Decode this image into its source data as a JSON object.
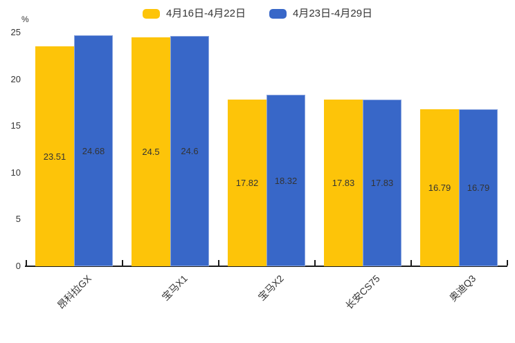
{
  "chart_data": {
    "type": "bar",
    "title": "",
    "unit_label": "%",
    "categories": [
      "昂科拉GX",
      "宝马X1",
      "宝马X2",
      "长安CS75",
      "奥迪Q3"
    ],
    "series": [
      {
        "name": "4月16日-4月22日",
        "color": "#FDC409",
        "values": [
          23.51,
          24.5,
          17.82,
          17.83,
          16.79
        ]
      },
      {
        "name": "4月23日-4月29日",
        "color": "#3867C8",
        "values": [
          24.68,
          24.6,
          18.32,
          17.83,
          16.79
        ]
      }
    ],
    "value_labels": [
      [
        "23.51",
        "24.5",
        "17.82",
        "17.83",
        "16.79"
      ],
      [
        "24.68",
        "24.6",
        "18.32",
        "17.83",
        "16.79"
      ]
    ],
    "ylim": [
      0,
      25
    ],
    "yticks": [
      0,
      5,
      10,
      15,
      20,
      25
    ],
    "grid": false,
    "legend_position": "top-center",
    "bar_label_position": "inside-center",
    "x_label_rotation_deg": 45,
    "colors": {
      "text": "#333333",
      "axis": "#1A1A1A",
      "background": "#FFFFFF"
    }
  }
}
